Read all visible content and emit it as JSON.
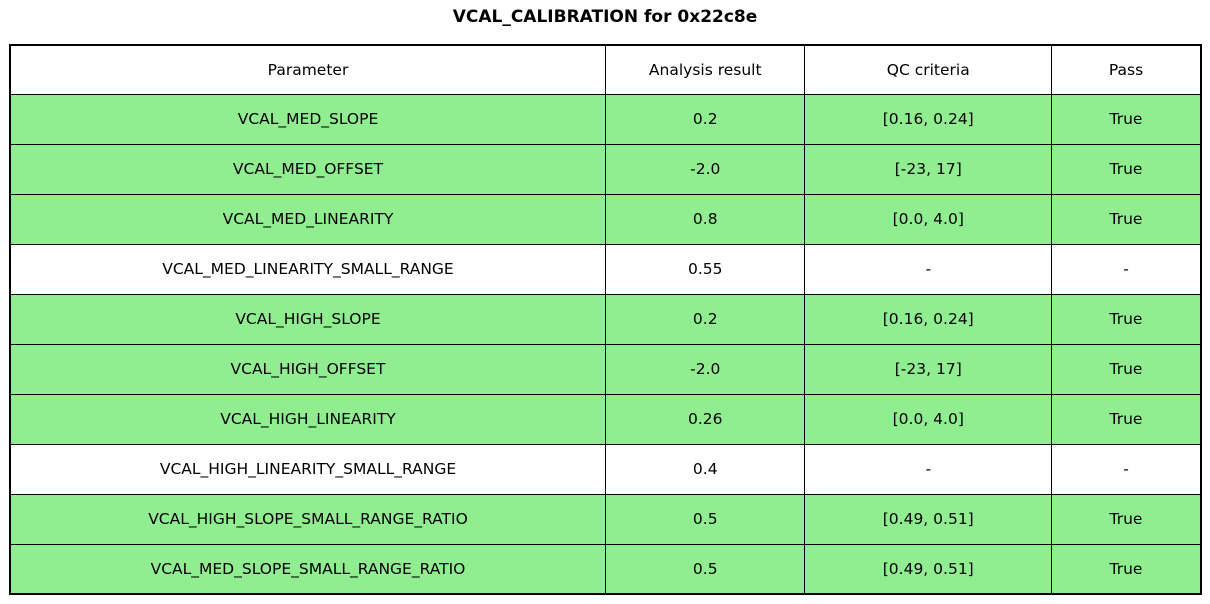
{
  "page": {
    "title": "VCAL_CALIBRATION for 0x22c8e"
  },
  "colors": {
    "pass_row_bg": "#90EE90",
    "neutral_row_bg": "#FFFFFF",
    "header_bg": "#FFFFFF",
    "border": "#000000",
    "text": "#000000"
  },
  "chart_data": {
    "type": "table",
    "title": "VCAL_CALIBRATION for 0x22c8e",
    "columns": [
      "Parameter",
      "Analysis result",
      "QC criteria",
      "Pass"
    ],
    "column_widths_pct": [
      50,
      16.75,
      20.7,
      12.55
    ],
    "rows": [
      {
        "parameter": "VCAL_MED_SLOPE",
        "result": "0.2",
        "qc": "[0.16, 0.24]",
        "pass": "True",
        "highlight": true
      },
      {
        "parameter": "VCAL_MED_OFFSET",
        "result": "-2.0",
        "qc": "[-23, 17]",
        "pass": "True",
        "highlight": true
      },
      {
        "parameter": "VCAL_MED_LINEARITY",
        "result": "0.8",
        "qc": "[0.0, 4.0]",
        "pass": "True",
        "highlight": true
      },
      {
        "parameter": "VCAL_MED_LINEARITY_SMALL_RANGE",
        "result": "0.55",
        "qc": "-",
        "pass": "-",
        "highlight": false
      },
      {
        "parameter": "VCAL_HIGH_SLOPE",
        "result": "0.2",
        "qc": "[0.16, 0.24]",
        "pass": "True",
        "highlight": true
      },
      {
        "parameter": "VCAL_HIGH_OFFSET",
        "result": "-2.0",
        "qc": "[-23, 17]",
        "pass": "True",
        "highlight": true
      },
      {
        "parameter": "VCAL_HIGH_LINEARITY",
        "result": "0.26",
        "qc": "[0.0, 4.0]",
        "pass": "True",
        "highlight": true
      },
      {
        "parameter": "VCAL_HIGH_LINEARITY_SMALL_RANGE",
        "result": "0.4",
        "qc": "-",
        "pass": "-",
        "highlight": false
      },
      {
        "parameter": "VCAL_HIGH_SLOPE_SMALL_RANGE_RATIO",
        "result": "0.5",
        "qc": "[0.49, 0.51]",
        "pass": "True",
        "highlight": true
      },
      {
        "parameter": "VCAL_MED_SLOPE_SMALL_RANGE_RATIO",
        "result": "0.5",
        "qc": "[0.49, 0.51]",
        "pass": "True",
        "highlight": true
      }
    ]
  }
}
